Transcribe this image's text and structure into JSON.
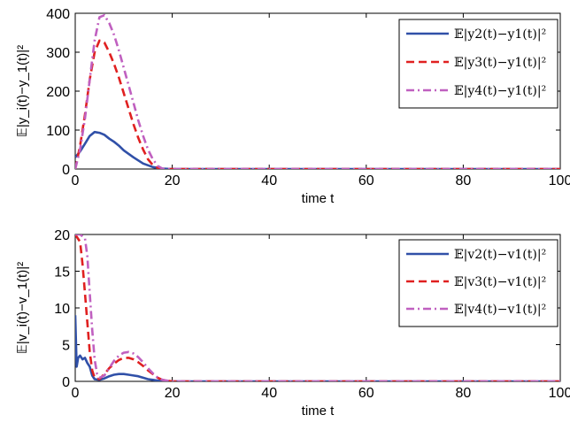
{
  "chart_data": [
    {
      "type": "line",
      "xlabel": "time t",
      "ylabel": "𝔼|y_i(t)−y_1(t)|²",
      "xlim": [
        0,
        100
      ],
      "ylim": [
        0,
        400
      ],
      "xticks": [
        "0",
        "20",
        "40",
        "60",
        "80",
        "100"
      ],
      "yticks": [
        "0",
        "100",
        "200",
        "300",
        "400"
      ],
      "grid": false,
      "legend_position": "top-right",
      "series": [
        {
          "name": "𝔼|y2(t)−y1(t)|²",
          "color": "#3050a8",
          "style": "solid",
          "x": [
            0,
            1,
            2,
            3,
            4,
            5,
            6,
            7,
            8,
            9,
            10,
            12,
            14,
            16,
            18,
            20,
            30,
            100
          ],
          "y": [
            30,
            45,
            65,
            85,
            95,
            93,
            88,
            78,
            70,
            60,
            48,
            30,
            14,
            5,
            1,
            0,
            0,
            0
          ]
        },
        {
          "name": "𝔼|y3(t)−y1(t)|²",
          "color": "#e02020",
          "style": "dashed",
          "x": [
            0,
            1,
            2,
            3,
            4,
            5,
            6,
            7,
            8,
            9,
            10,
            11,
            12,
            13,
            14,
            15,
            16,
            17,
            18,
            20,
            30,
            100
          ],
          "y": [
            0,
            60,
            140,
            230,
            300,
            330,
            325,
            300,
            270,
            235,
            195,
            155,
            115,
            80,
            50,
            25,
            10,
            3,
            0,
            0,
            0,
            0
          ]
        },
        {
          "name": "𝔼|y4(t)−y1(t)|²",
          "color": "#c060c0",
          "style": "dashdot",
          "x": [
            0,
            1,
            2,
            3,
            4,
            5,
            6,
            7,
            8,
            9,
            10,
            11,
            12,
            13,
            14,
            15,
            16,
            17,
            18,
            20,
            30,
            100
          ],
          "y": [
            0,
            50,
            130,
            230,
            330,
            390,
            395,
            375,
            345,
            305,
            260,
            215,
            170,
            125,
            85,
            50,
            25,
            8,
            1,
            0,
            0,
            0
          ]
        }
      ]
    },
    {
      "type": "line",
      "xlabel": "time t",
      "ylabel": "𝔼|v_i(t)−v_1(t)|²",
      "xlim": [
        0,
        100
      ],
      "ylim": [
        0,
        20
      ],
      "xticks": [
        "0",
        "20",
        "40",
        "60",
        "80",
        "100"
      ],
      "yticks": [
        "0",
        "5",
        "10",
        "15",
        "20"
      ],
      "grid": false,
      "legend_position": "top-right",
      "series": [
        {
          "name": "𝔼|v2(t)−v1(t)|²",
          "color": "#3050a8",
          "style": "solid",
          "x": [
            0,
            0.3,
            0.6,
            1,
            1.5,
            2,
            2.5,
            3,
            3.5,
            4,
            5,
            6,
            7,
            8,
            9,
            10,
            11,
            12,
            13,
            14,
            15,
            16,
            17,
            18,
            20,
            30,
            100
          ],
          "y": [
            9,
            2,
            3.2,
            3.5,
            3,
            3.2,
            2.5,
            2,
            0.8,
            0.3,
            0.2,
            0.4,
            0.7,
            0.9,
            1.0,
            1.0,
            0.9,
            0.8,
            0.7,
            0.5,
            0.3,
            0.2,
            0.1,
            0.05,
            0,
            0,
            0
          ]
        },
        {
          "name": "𝔼|v3(t)−v1(t)|²",
          "color": "#e02020",
          "style": "dashed",
          "x": [
            0,
            0.5,
            1,
            1.5,
            2,
            2.5,
            3,
            3.5,
            4,
            5,
            6,
            7,
            8,
            9,
            10,
            11,
            12,
            13,
            14,
            15,
            16,
            17,
            18,
            20,
            30,
            100
          ],
          "y": [
            20,
            19.5,
            19,
            16,
            12,
            8,
            4,
            1.5,
            0.5,
            0.3,
            1,
            1.8,
            2.4,
            2.9,
            3.2,
            3.2,
            3.0,
            2.6,
            2.1,
            1.5,
            1.0,
            0.5,
            0.2,
            0,
            0,
            0
          ]
        },
        {
          "name": "𝔼|v4(t)−v1(t)|²",
          "color": "#c060c0",
          "style": "dashdot",
          "x": [
            0,
            1,
            2,
            2.5,
            3,
            3.5,
            4,
            4.5,
            5,
            6,
            7,
            8,
            9,
            10,
            11,
            12,
            13,
            14,
            15,
            16,
            17,
            18,
            20,
            30,
            100
          ],
          "y": [
            20,
            20,
            19.5,
            17,
            12,
            7,
            3,
            1,
            0.5,
            0.8,
            1.8,
            2.8,
            3.5,
            3.9,
            4.0,
            3.8,
            3.3,
            2.6,
            1.8,
            1.1,
            0.5,
            0.2,
            0,
            0,
            0
          ]
        }
      ]
    }
  ]
}
